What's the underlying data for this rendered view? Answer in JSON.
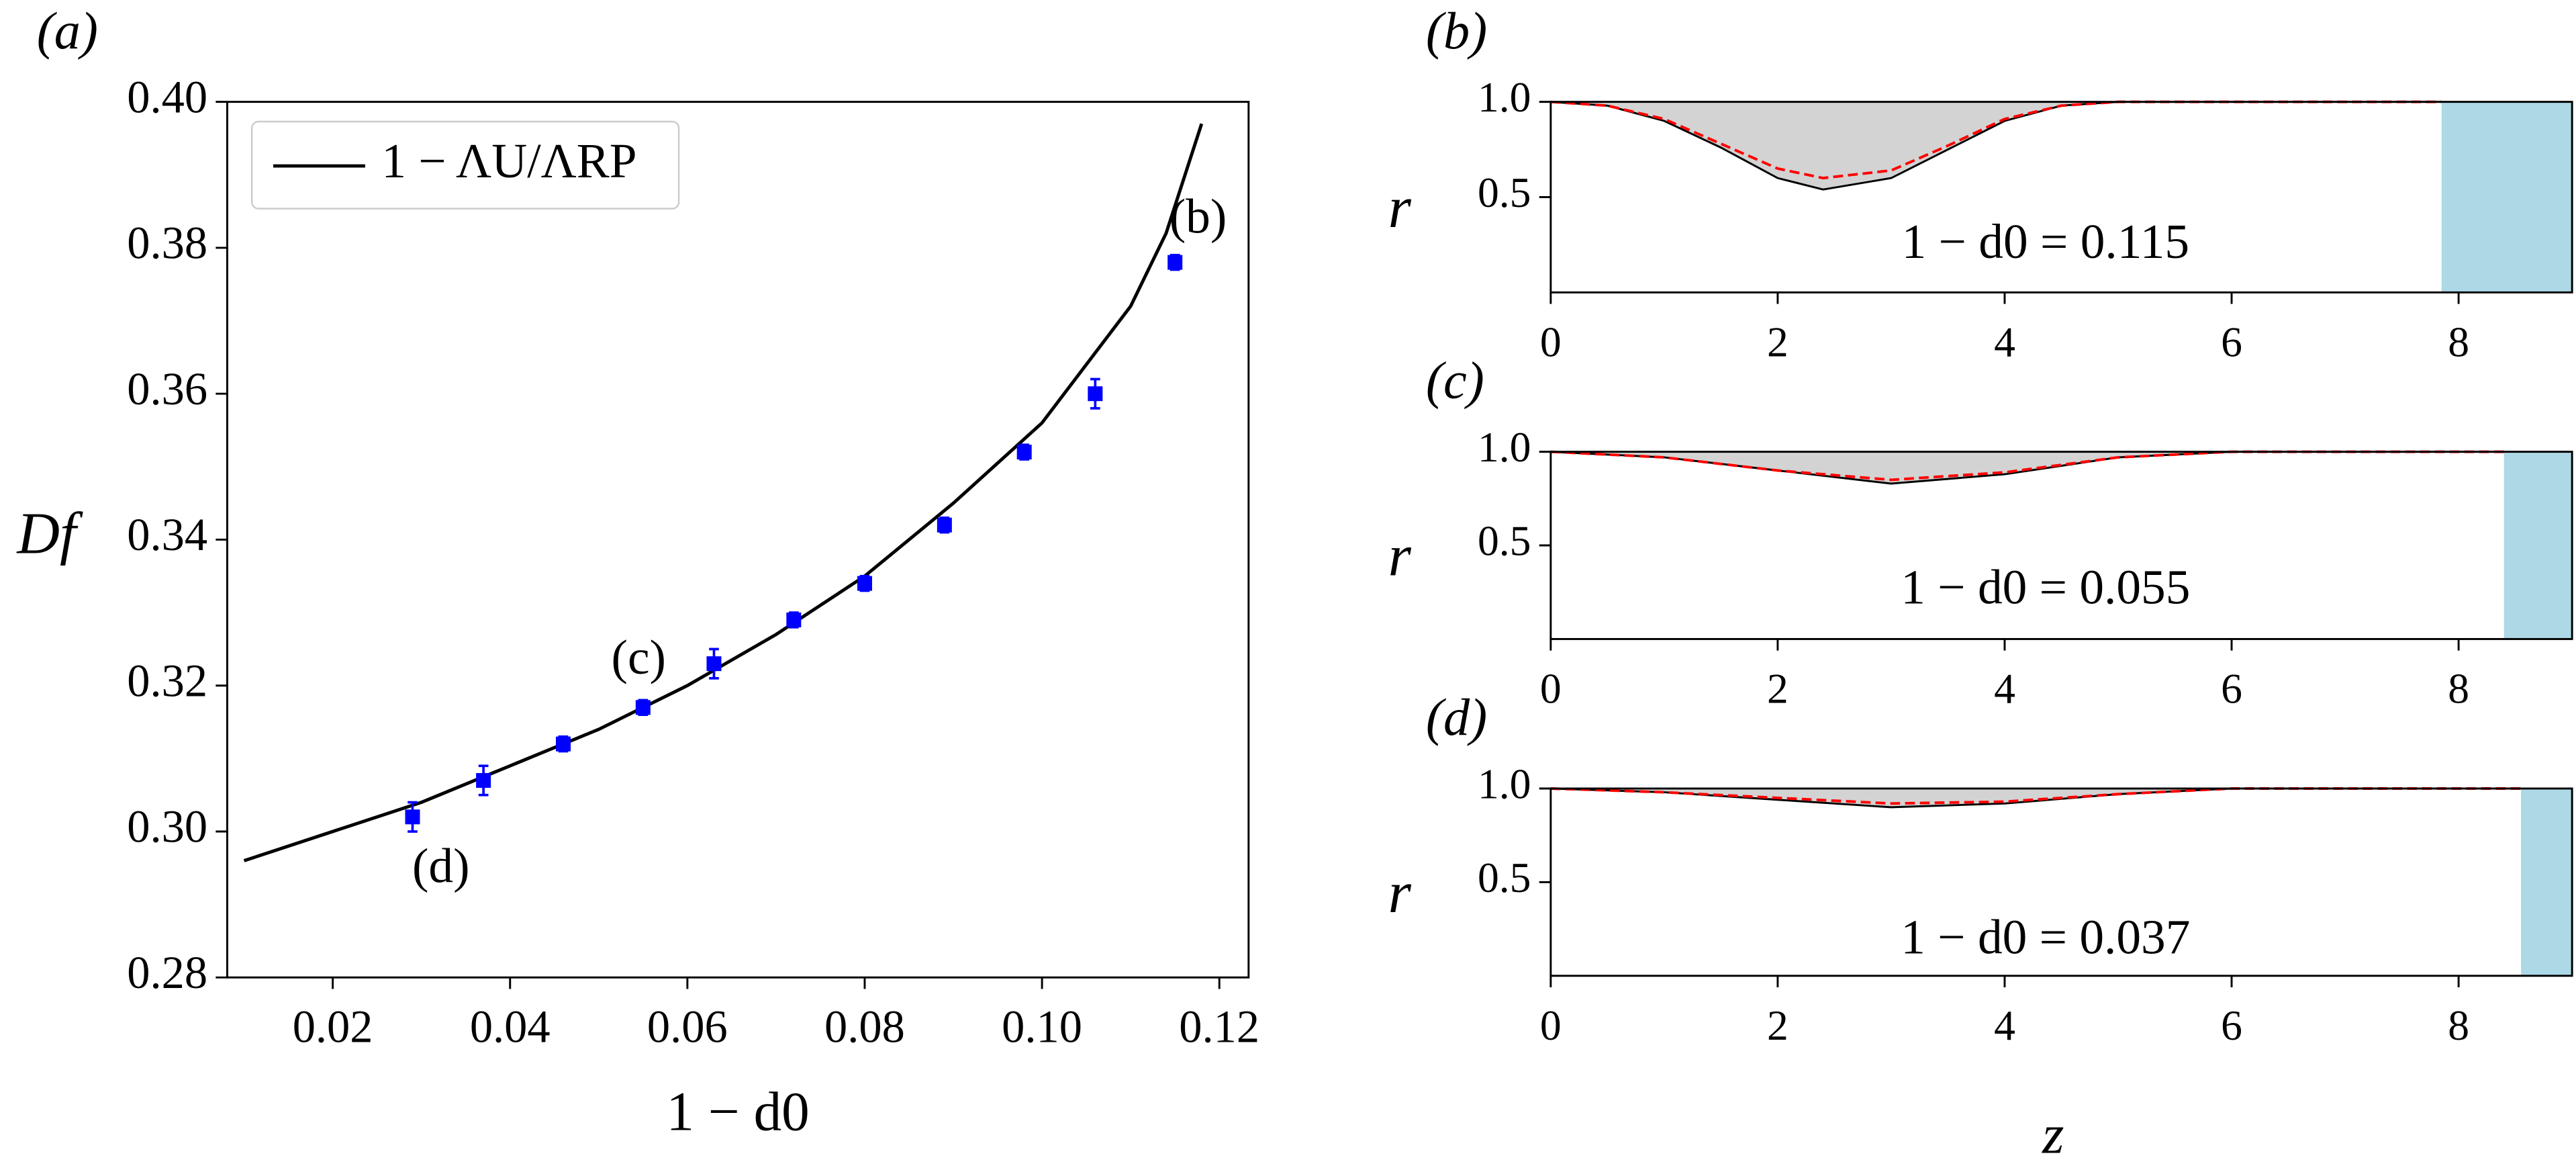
{
  "chart_data": [
    {
      "type": "scatter",
      "title": "(a)",
      "xlabel": "1 − d0",
      "ylabel": "Df",
      "xlim": [
        0.0081,
        0.1233
      ],
      "ylim": [
        0.28,
        0.4
      ],
      "xticks": [
        0.02,
        0.04,
        0.06,
        0.08,
        {
          "value": 0.1,
          "label": "0.10"
        },
        0.12
      ],
      "yticks": [
        0.28,
        {
          "value": 0.3,
          "label": "0.30"
        },
        0.32,
        0.34,
        0.36,
        0.38,
        {
          "value": 0.4,
          "label": "0.40"
        }
      ],
      "legend": "upper left",
      "series": [
        {
          "name": "1 − ΛU/ΛRP",
          "type": "line",
          "color": "#000000",
          "x": [
            0.01,
            0.02,
            0.03,
            0.04,
            0.05,
            0.06,
            0.07,
            0.08,
            0.09,
            0.1,
            0.11,
            0.114,
            0.118
          ],
          "values": [
            0.296,
            0.3,
            0.304,
            0.309,
            0.314,
            0.32,
            0.327,
            0.335,
            0.345,
            0.356,
            0.372,
            0.382,
            0.397
          ]
        },
        {
          "type": "errorbar",
          "color": "#0000ff",
          "x": [
            0.029,
            0.037,
            0.046,
            0.055,
            0.063,
            0.072,
            0.08,
            0.089,
            0.098,
            0.106,
            0.115
          ],
          "values": [
            0.302,
            0.307,
            0.312,
            0.317,
            0.323,
            0.329,
            0.334,
            0.342,
            0.352,
            0.36,
            0.378
          ],
          "errors": [
            0.002,
            0.002,
            0.001,
            0.001,
            0.002,
            0.001,
            0.001,
            0.001,
            0.001,
            0.002,
            0.001
          ]
        }
      ],
      "annotations": [
        {
          "text": "(b)",
          "x": 0.1176,
          "y": 0.3836
        },
        {
          "text": "(c)",
          "x": 0.0545,
          "y": 0.3232
        },
        {
          "text": "(d)",
          "x": 0.0322,
          "y": 0.2946
        }
      ]
    },
    {
      "type": "area",
      "title": "(b)",
      "ylabel": "r",
      "xlim": [
        0,
        9
      ],
      "ylim": [
        0,
        1
      ],
      "xticks": [
        0,
        2,
        4,
        6,
        8
      ],
      "yticks": [
        0.5,
        {
          "value": 1,
          "label": "1.0"
        }
      ],
      "region": [
        7.85,
        9
      ],
      "region_color": "#add8e6",
      "x": [
        0,
        0.5,
        1,
        1.5,
        2,
        2.4,
        3,
        3.5,
        4,
        4.5,
        5,
        6,
        7,
        7.85
      ],
      "series": [
        {
          "color": "#000000",
          "fill": "#d3d3d3",
          "values": [
            1,
            0.98,
            0.9,
            0.76,
            0.6,
            0.54,
            0.6,
            0.75,
            0.9,
            0.98,
            1,
            1,
            1,
            1
          ]
        },
        {
          "color": "#ff0000",
          "dashed": true,
          "values": [
            1,
            0.98,
            0.91,
            0.78,
            0.65,
            0.6,
            0.64,
            0.77,
            0.91,
            0.98,
            1,
            1,
            1,
            1
          ]
        }
      ],
      "annotations": [
        {
          "text": "1 − d0 = 0.115",
          "x": 4.36,
          "y": 0.24
        }
      ]
    },
    {
      "type": "area",
      "title": "(c)",
      "ylabel": "r",
      "xlim": [
        0,
        9
      ],
      "ylim": [
        0,
        1
      ],
      "xticks": [
        0,
        2,
        4,
        6,
        8
      ],
      "yticks": [
        0.5,
        {
          "value": 1,
          "label": "1.0"
        }
      ],
      "region": [
        8.4,
        9
      ],
      "region_color": "#add8e6",
      "x": [
        0,
        1,
        2,
        3,
        4,
        5,
        6,
        7,
        8.4
      ],
      "series": [
        {
          "color": "#000000",
          "fill": "#d3d3d3",
          "values": [
            1,
            0.97,
            0.9,
            0.83,
            0.88,
            0.97,
            1,
            1,
            1
          ]
        },
        {
          "color": "#ff0000",
          "dashed": true,
          "values": [
            1,
            0.97,
            0.9,
            0.85,
            0.89,
            0.97,
            1,
            1,
            1
          ]
        }
      ],
      "annotations": [
        {
          "text": "1 − d0 = 0.055",
          "x": 4.36,
          "y": 0.25
        }
      ]
    },
    {
      "type": "area",
      "title": "(d)",
      "ylabel": "r",
      "xlabel": "z",
      "xlim": [
        0,
        9
      ],
      "ylim": [
        0,
        1
      ],
      "xticks": [
        0,
        2,
        4,
        6,
        8
      ],
      "yticks": [
        0.5,
        {
          "value": 1,
          "label": "1.0"
        }
      ],
      "region": [
        8.55,
        9
      ],
      "region_color": "#add8e6",
      "x": [
        0,
        1,
        2,
        3,
        4,
        5,
        6,
        7,
        8.55
      ],
      "series": [
        {
          "color": "#000000",
          "fill": "#d3d3d3",
          "values": [
            1,
            0.98,
            0.94,
            0.9,
            0.92,
            0.97,
            1,
            1,
            1
          ]
        },
        {
          "color": "#ff0000",
          "dashed": true,
          "values": [
            1,
            0.98,
            0.95,
            0.92,
            0.93,
            0.97,
            1,
            1,
            1
          ]
        }
      ],
      "annotations": [
        {
          "text": "1 − d0 = 0.037",
          "x": 4.36,
          "y": 0.18
        }
      ]
    }
  ]
}
